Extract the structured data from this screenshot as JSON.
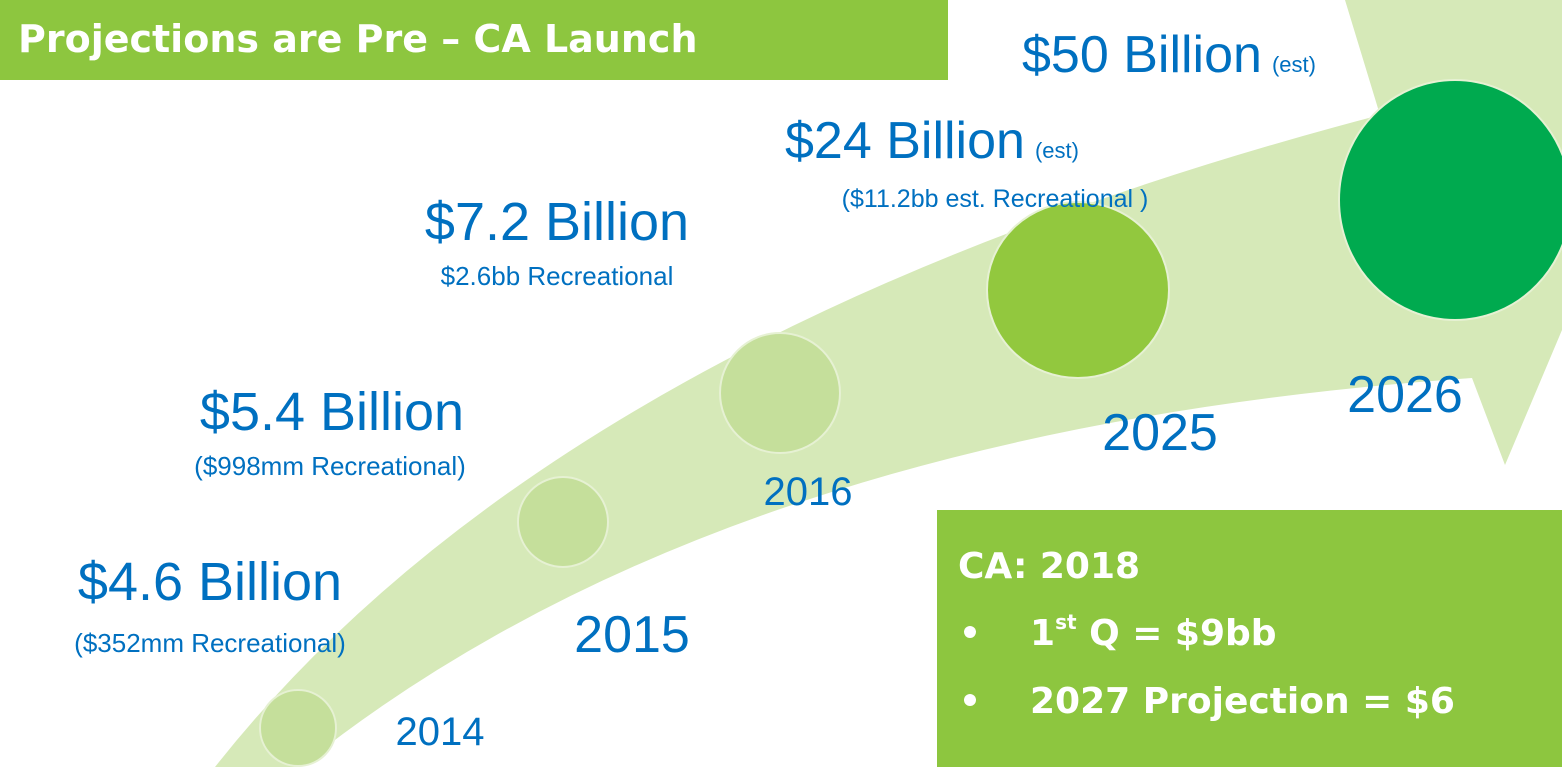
{
  "banner": "Projections are Pre – CA Launch",
  "milestones": [
    {
      "amount": "$4.6 Billion",
      "note": "($352mm Recreational)",
      "year": "2014"
    },
    {
      "amount": "$5.4 Billion",
      "note": "($998mm Recreational)",
      "year": "2015"
    },
    {
      "amount": "$7.2 Billion",
      "note": "$2.6bb Recreational",
      "year": "2016"
    },
    {
      "amount": "$24 Billion",
      "est": "(est)",
      "note": "($11.2bb est. Recreational )",
      "year": "2025"
    },
    {
      "amount": "$50 Billion",
      "est": "(est)",
      "year": "2026"
    }
  ],
  "callout": {
    "title": "CA: 2018",
    "bullets": [
      {
        "parts": [
          "1",
          "st",
          " Q = $9bb"
        ]
      },
      {
        "parts": [
          "2027 Projection = $6"
        ]
      }
    ]
  }
}
